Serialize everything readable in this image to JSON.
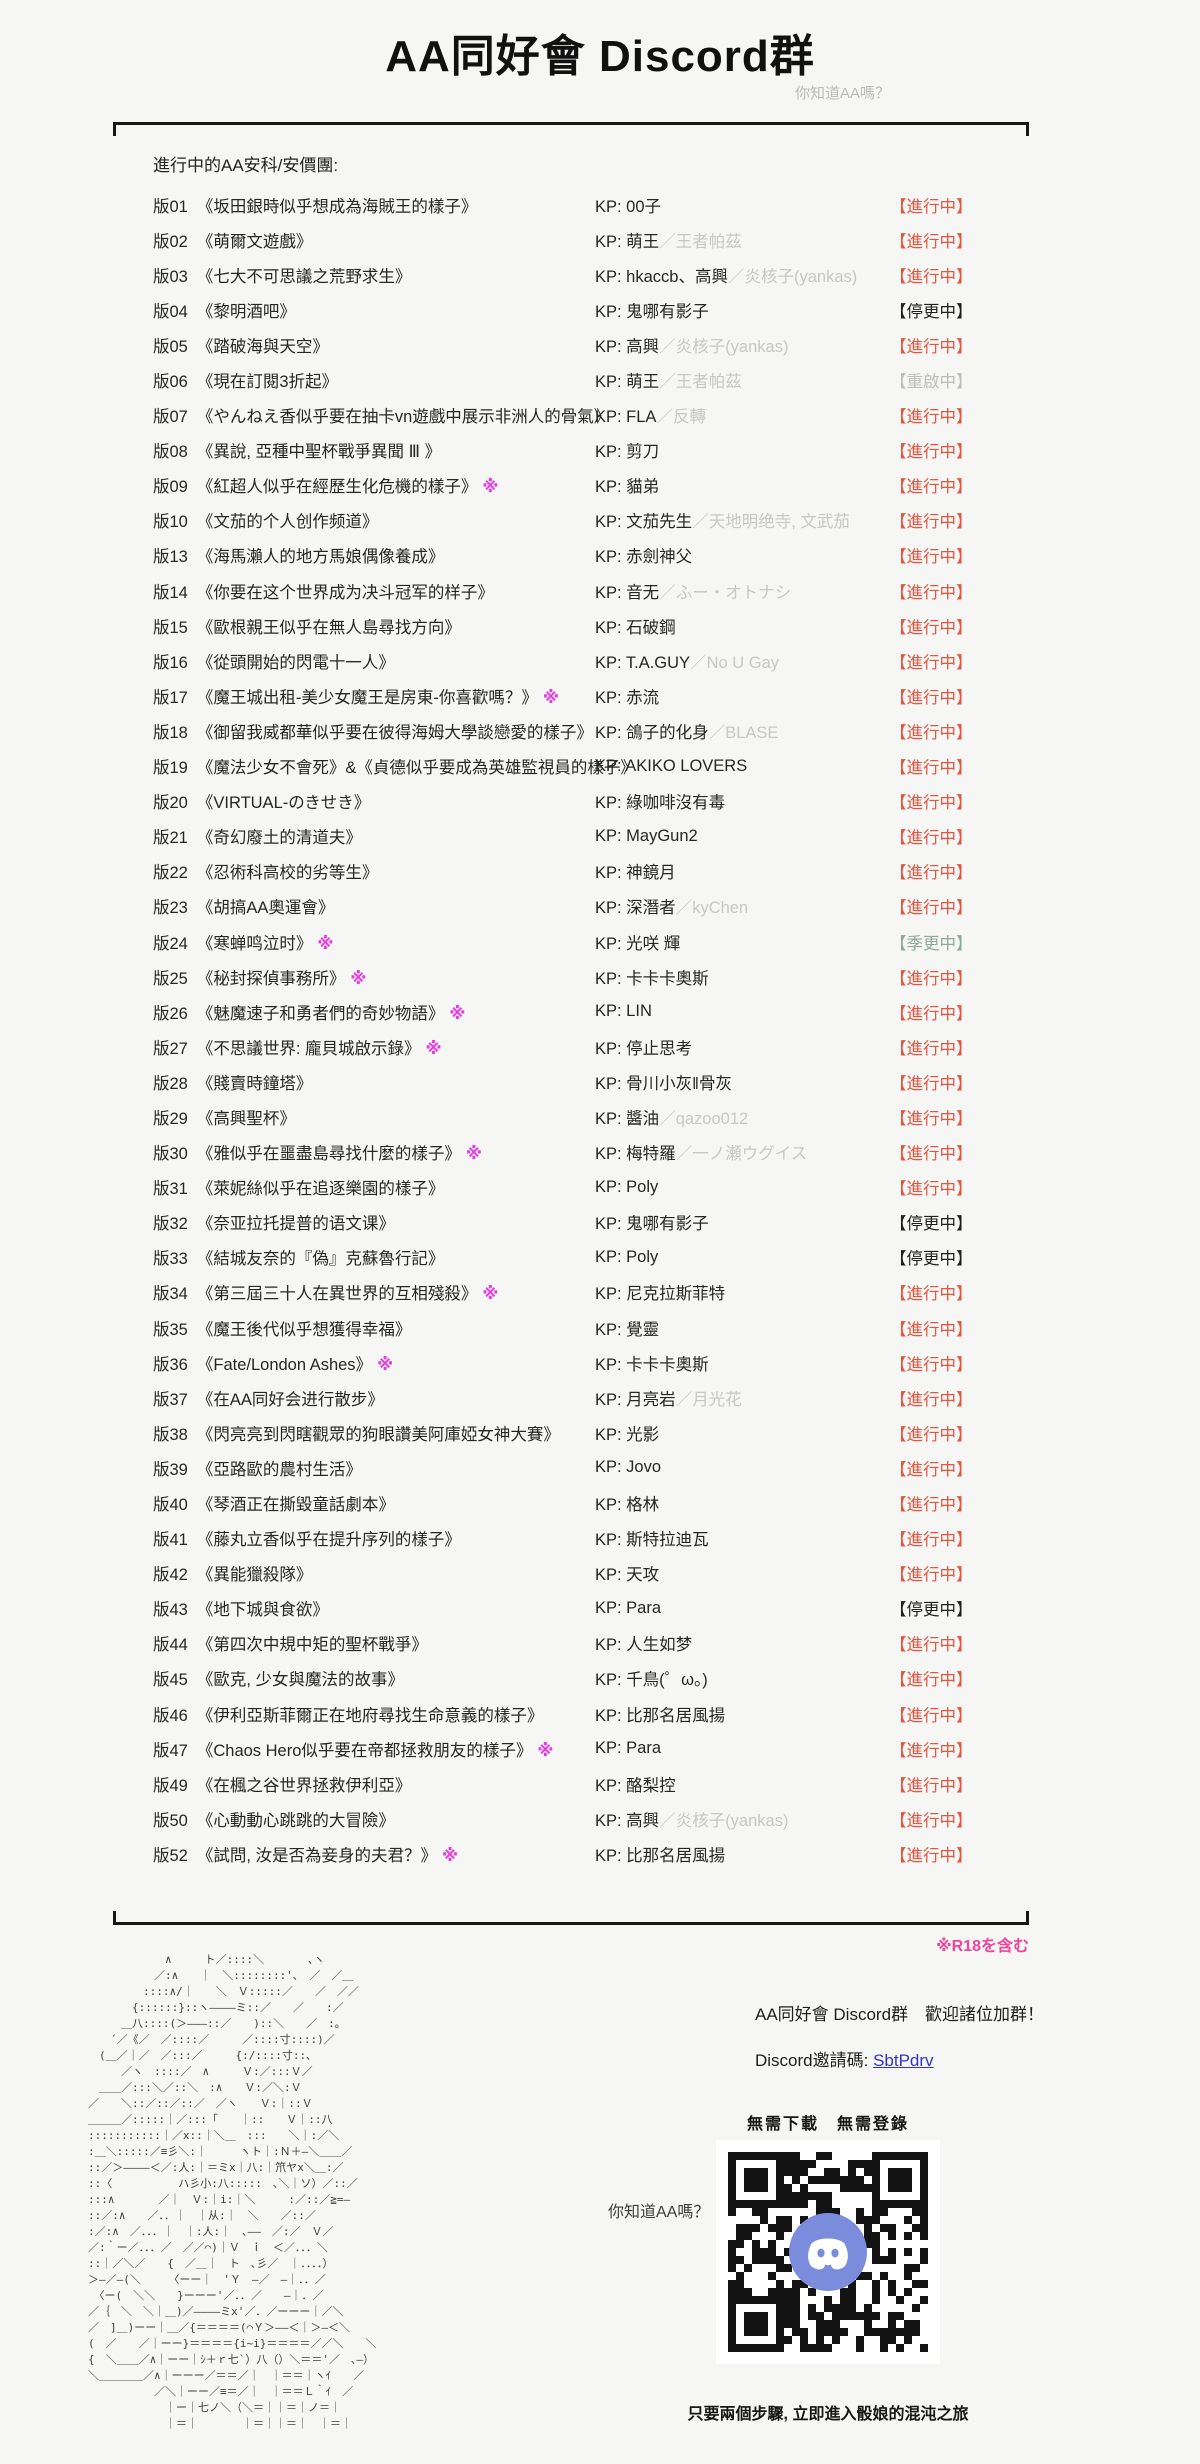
{
  "page": {
    "title": "AA同好會 Discord群",
    "subtitle": "你知道AA嗎？",
    "list_heading": "進行中的AA安科/安價團:",
    "r18_note": "※R18を含む",
    "note_mark": "※"
  },
  "colors": {
    "status_active": "#e25742",
    "status_restart": "#bdbdbd",
    "status_seasonal": "#8fa7a0",
    "note_pink": "#e53ae5",
    "r18_pink": "#f2439b",
    "link_blue": "#3333cc",
    "blurple": "#7b8cdd",
    "qr_dark": "#131313"
  },
  "list": {
    "kp_prefix": "KP: ",
    "rows": [
      {
        "id": "版01",
        "title": "《坂田銀時似乎想成為海賊王的樣子》",
        "note": false,
        "kp": "00子",
        "alt": "",
        "status": "【進行中】",
        "type": "active"
      },
      {
        "id": "版02",
        "title": "《萌爾文遊戲》",
        "note": false,
        "kp": "萌王",
        "alt": "／王者帕茲",
        "status": "【進行中】",
        "type": "active"
      },
      {
        "id": "版03",
        "title": "《七大不可思議之荒野求生》",
        "note": false,
        "kp": "hkaccb、高興",
        "alt": "／炎核子(yankas)",
        "status": "【進行中】",
        "type": "active"
      },
      {
        "id": "版04",
        "title": "《黎明酒吧》",
        "note": false,
        "kp": "鬼哪有影子",
        "alt": "",
        "status": "【停更中】",
        "type": "paused"
      },
      {
        "id": "版05",
        "title": "《踏破海與天空》",
        "note": false,
        "kp": "高興",
        "alt": "／炎核子(yankas)",
        "status": "【進行中】",
        "type": "active"
      },
      {
        "id": "版06",
        "title": "《現在訂閱3折起》",
        "note": false,
        "kp": "萌王",
        "alt": "／王者帕茲",
        "status": "【重啟中】",
        "type": "restart"
      },
      {
        "id": "版07",
        "title": "《やんねえ香似乎要在抽卡vn遊戲中展示非洲人的骨氣》",
        "note": false,
        "kp": "FLA",
        "alt": "／反轉",
        "status": "【進行中】",
        "type": "active"
      },
      {
        "id": "版08",
        "title": "《異說, 亞種中聖杯戰爭異聞 Ⅲ 》",
        "note": false,
        "kp": "剪刀",
        "alt": "",
        "status": "【進行中】",
        "type": "active"
      },
      {
        "id": "版09",
        "title": "《紅超人似乎在經歷生化危機的樣子》",
        "note": true,
        "kp": "貓弟",
        "alt": "",
        "status": "【進行中】",
        "type": "active"
      },
      {
        "id": "版10",
        "title": "《文茄的个人创作频道》",
        "note": false,
        "kp": "文茄先生",
        "alt": "／天地明绝寺, 文武茄",
        "status": "【進行中】",
        "type": "active"
      },
      {
        "id": "版13",
        "title": "《海馬瀨人的地方馬娘偶像養成》",
        "note": false,
        "kp": "赤劍神父",
        "alt": "",
        "status": "【進行中】",
        "type": "active"
      },
      {
        "id": "版14",
        "title": "《你要在这个世界成为决斗冠军的样子》",
        "note": false,
        "kp": "音无",
        "alt": "／ふー・オトナシ",
        "status": "【進行中】",
        "type": "active"
      },
      {
        "id": "版15",
        "title": "《歐根親王似乎在無人島尋找方向》",
        "note": false,
        "kp": "石破鋼",
        "alt": "",
        "status": "【進行中】",
        "type": "active"
      },
      {
        "id": "版16",
        "title": "《從頭開始的閃電十一人》",
        "note": false,
        "kp": "T.A.GUY",
        "alt": "／No U Gay",
        "status": "【進行中】",
        "type": "active"
      },
      {
        "id": "版17",
        "title": "《魔王城出租-美少女魔王是房東-你喜歡嗎？》",
        "note": true,
        "kp": "赤流",
        "alt": "",
        "status": "【進行中】",
        "type": "active"
      },
      {
        "id": "版18",
        "title": "《御留我威都華似乎要在彼得海姆大學談戀愛的樣子》",
        "note": false,
        "kp": "鴿子的化身",
        "alt": "／BLASE",
        "status": "【進行中】",
        "type": "active"
      },
      {
        "id": "版19",
        "title": "《魔法少女不會死》&《貞德似乎要成為英雄監視員的樣子》",
        "note": false,
        "kp": "AKIKO LOVERS",
        "alt": "",
        "status": "【進行中】",
        "type": "active"
      },
      {
        "id": "版20",
        "title": "《VIRTUAL-のきせき》",
        "note": false,
        "kp": "綠咖啡沒有毒",
        "alt": "",
        "status": "【進行中】",
        "type": "active"
      },
      {
        "id": "版21",
        "title": "《奇幻廢土的清道夫》",
        "note": false,
        "kp": "MayGun2",
        "alt": "",
        "status": "【進行中】",
        "type": "active"
      },
      {
        "id": "版22",
        "title": "《忍術科高校的劣等生》",
        "note": false,
        "kp": "神鏡月",
        "alt": "",
        "status": "【進行中】",
        "type": "active"
      },
      {
        "id": "版23",
        "title": "《胡搞AA奧運會》",
        "note": false,
        "kp": "深潛者",
        "alt": "／kyChen",
        "status": "【進行中】",
        "type": "active"
      },
      {
        "id": "版24",
        "title": "《寒蝉鸣泣时》",
        "note": true,
        "kp": "光咲 輝",
        "alt": "",
        "status": "【季更中】",
        "type": "seasonal"
      },
      {
        "id": "版25",
        "title": "《秘封探偵事務所》",
        "note": true,
        "kp": "卡卡卡奧斯",
        "alt": "",
        "status": "【進行中】",
        "type": "active"
      },
      {
        "id": "版26",
        "title": "《魅魔速子和勇者們的奇妙物語》",
        "note": true,
        "kp": "LIN",
        "alt": "",
        "status": "【進行中】",
        "type": "active"
      },
      {
        "id": "版27",
        "title": "《不思議世界: 龐貝城啟示錄》",
        "note": true,
        "kp": "停止思考",
        "alt": "",
        "status": "【進行中】",
        "type": "active"
      },
      {
        "id": "版28",
        "title": "《賤賣時鐘塔》",
        "note": false,
        "kp": "骨川小灰‖骨灰",
        "alt": "",
        "status": "【進行中】",
        "type": "active"
      },
      {
        "id": "版29",
        "title": "《高興聖杯》",
        "note": false,
        "kp": "醬油",
        "alt": "／qazoo012",
        "status": "【進行中】",
        "type": "active"
      },
      {
        "id": "版30",
        "title": "《雅似乎在噩盡島尋找什麼的樣子》",
        "note": true,
        "kp": "梅特羅",
        "alt": "／一ノ瀬ウグイス",
        "status": "【進行中】",
        "type": "active"
      },
      {
        "id": "版31",
        "title": "《萊妮絲似乎在追逐樂園的樣子》",
        "note": false,
        "kp": "Poly",
        "alt": "",
        "status": "【進行中】",
        "type": "active"
      },
      {
        "id": "版32",
        "title": "《奈亚拉托提普的语文课》",
        "note": false,
        "kp": "鬼哪有影子",
        "alt": "",
        "status": "【停更中】",
        "type": "paused"
      },
      {
        "id": "版33",
        "title": "《結城友奈的『偽』克蘇魯行記》",
        "note": false,
        "kp": "Poly",
        "alt": "",
        "status": "【停更中】",
        "type": "paused"
      },
      {
        "id": "版34",
        "title": "《第三屆三十人在異世界的互相殘殺》",
        "note": true,
        "kp": "尼克拉斯菲特",
        "alt": "",
        "status": "【進行中】",
        "type": "active"
      },
      {
        "id": "版35",
        "title": "《魔王後代似乎想獲得幸福》",
        "note": false,
        "kp": "覺靈",
        "alt": "",
        "status": "【進行中】",
        "type": "active"
      },
      {
        "id": "版36",
        "title": "《Fate/London Ashes》",
        "note": true,
        "kp": "卡卡卡奧斯",
        "alt": "",
        "status": "【進行中】",
        "type": "active"
      },
      {
        "id": "版37",
        "title": "《在AA同好会进行散步》",
        "note": false,
        "kp": "月亮岩",
        "alt": "／月光花",
        "status": "【進行中】",
        "type": "active"
      },
      {
        "id": "版38",
        "title": "《閃亮亮到閃瞎觀眾的狗眼讚美阿庫婭女神大賽》",
        "note": false,
        "kp": "光影",
        "alt": "",
        "status": "【進行中】",
        "type": "active"
      },
      {
        "id": "版39",
        "title": "《亞路歐的農村生活》",
        "note": false,
        "kp": "Jovo",
        "alt": "",
        "status": "【進行中】",
        "type": "active"
      },
      {
        "id": "版40",
        "title": "《琴酒正在撕毀童話劇本》",
        "note": false,
        "kp": "格林",
        "alt": "",
        "status": "【進行中】",
        "type": "active"
      },
      {
        "id": "版41",
        "title": "《藤丸立香似乎在提升序列的樣子》",
        "note": false,
        "kp": "斯特拉迪瓦",
        "alt": "",
        "status": "【進行中】",
        "type": "active"
      },
      {
        "id": "版42",
        "title": "《異能獵殺隊》",
        "note": false,
        "kp": "天攻",
        "alt": "",
        "status": "【進行中】",
        "type": "active"
      },
      {
        "id": "版43",
        "title": "《地下城與食欲》",
        "note": false,
        "kp": "Para",
        "alt": "",
        "status": "【停更中】",
        "type": "paused"
      },
      {
        "id": "版44",
        "title": "《第四次中規中矩的聖杯戰爭》",
        "note": false,
        "kp": "人生如梦",
        "alt": "",
        "status": "【進行中】",
        "type": "active"
      },
      {
        "id": "版45",
        "title": "《歐克, 少女與魔法的故事》",
        "note": false,
        "kp": "千鳥(゜ω。)",
        "alt": "",
        "status": "【進行中】",
        "type": "active"
      },
      {
        "id": "版46",
        "title": "《伊利亞斯菲爾正在地府尋找生命意義的樣子》",
        "note": false,
        "kp": "比那名居風揚",
        "alt": "",
        "status": "【進行中】",
        "type": "active"
      },
      {
        "id": "版47",
        "title": "《Chaos Hero似乎要在帝都拯救朋友的樣子》",
        "note": true,
        "kp": "Para",
        "alt": "",
        "status": "【進行中】",
        "type": "active"
      },
      {
        "id": "版49",
        "title": "《在楓之谷世界拯救伊利亞》",
        "note": false,
        "kp": "酪梨控",
        "alt": "",
        "status": "【進行中】",
        "type": "active"
      },
      {
        "id": "版50",
        "title": "《心動動心跳跳的大冒險》",
        "note": false,
        "kp": "高興",
        "alt": "／炎核子(yankas)",
        "status": "【進行中】",
        "type": "active"
      },
      {
        "id": "版52",
        "title": "《試問, 汝是否為妾身的夫君？》",
        "note": true,
        "kp": "比那名居風揚",
        "alt": "",
        "status": "【進行中】",
        "type": "active"
      }
    ]
  },
  "footer": {
    "invite_line1": "AA同好會 Discord群　歡迎諸位加群！",
    "invite_label": "Discord邀請碼: ",
    "invite_code": "SbtPdrv",
    "qr_top": "無需下載　無需登錄",
    "speech": "你知道AA嗎？",
    "qr_caption": "只要兩個步驟, 立即進入骰娘的混沌之旅",
    "ascii_art_lines": [
      "　　　　　　　∧　　　ト／::::＼　　　　､ヽ",
      "　　　　　　／:∧　　｜　＼::::::::'､　／　／＿",
      "　　　　　::::∧/｜　　＼　Ｖ:::::／　　／　／／",
      "　　　　{::::::}::ヽ――――ミ::／　　／　　:／",
      "　　　＿八::::(＞―――::／　　)::＼　　／　:｡",
      "　　´／《／　／::::／　　　／::::寸::::)／",
      "　(＿／｜／　／:::／　　　{:/::::寸::､",
      "　　　／ヽ　::::／　∧　　　Ｖ:／:::Ｖ／",
      "　＿＿／:::＼／::＼　:∧　　Ｖ:／＼:Ｖ",
      "／　　＼::／::／::／　／ヽ　　Ｖ:｜::Ｖ",
      "＿＿＿／:::::｜／:::「　　｜::　　Ｖ｜::八",
      ":::::::::::｜／x::｜＼＿　:::　　＼｜:／＼",
      ":＿＼:::::／≡彡＼:｜　　　ヽト｜:Ｎ＋―＼＿＿／",
      "::／＞――――＜／:人:｜＝ミx｜八:｜笊ヤx＼＿:／",
      "::〈　　　　　　ハ彡小:八:::::　､＼｜ソ）／::／",
      ":::∧　　　　／｜　Ｖ:｜i:｜＼　　　:／::／≧=―",
      "::／:∧　　／．．｜　｜从:｜　＼　　／::／",
      ":／:∧　／．．．｜　｜:人:｜　､――　／:／　Ｖ／",
      "／:｀ー／．．．／　／／⌒)｜Ｖ　ｉ　＜／．．．＼",
      "::｜／＼／　　{　／＿｜　ト　､彡／　｜．．．．）",
      "＞―／―(＼　　　〈ーー｜　'Ｙ　―／　―｜．．／",
      "　〈ー(　＼＼　　}ーーー'／．．／　　―｜．／",
      "／｛　＼　＼｜＿)／――――ミx'／．／ーーー｜／＼",
      "／　]＿)ーー｜＿／{＝＝＝＝(⌒Ｙ＞――＜｜＞―＜＼",
      "(　／　　／｜ーー}＝＝＝＝{i~i}＝＝＝＝／／＼　　＼",
      "{　＼＿＿／∧｜ーー｜ｼ＋ｒ七`）八（）＼＝＝'／　､―）",
      "＼＿＿＿＿／∧｜ーーー／＝＝／｜　｜＝＝｜ヽｲ　　／",
      "　　　　　　／＼｜ーー／≡＝／｜　｜＝＝Ｌ｀ｲ　／",
      "　　　　　　　｜ー｜七ノ＼（＼＝｜｜＝｜ノ＝｜",
      "　　　　　　　｜＝｜　　　　｜＝｜｜＝｜　｜＝｜"
    ]
  }
}
